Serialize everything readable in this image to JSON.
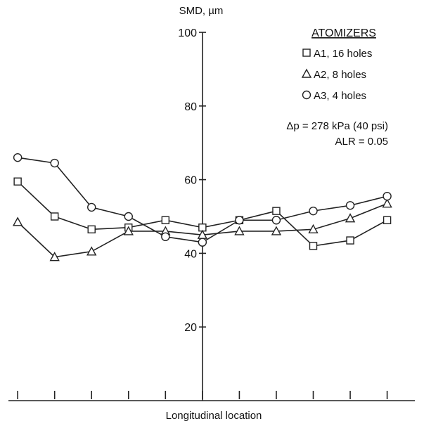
{
  "chart_data": {
    "type": "line",
    "ylabel": "SMD, µm",
    "xlabel": "Longitudinal location",
    "ylim": [
      0,
      100
    ],
    "yticks": [
      20,
      40,
      60,
      80,
      100
    ],
    "x": [
      1,
      2,
      3,
      4,
      5,
      6,
      7,
      8,
      9,
      10,
      11
    ],
    "xlim": [
      0.75,
      11.75
    ],
    "grid": false,
    "legend": {
      "title": "ATOMIZERS",
      "position": "top-right",
      "conditions": [
        "Δp = 278 kPa (40 psi)",
        "ALR = 0.05"
      ]
    },
    "series": [
      {
        "name": "A1, 16 holes",
        "marker": "square",
        "values": [
          59.5,
          50,
          46.5,
          47,
          49,
          47,
          49,
          51.5,
          42,
          43.5,
          49
        ]
      },
      {
        "name": "A2, 8 holes",
        "marker": "triangle",
        "values": [
          48.5,
          39,
          40.5,
          46,
          46,
          45,
          46,
          46,
          46.5,
          49.5,
          53.5
        ]
      },
      {
        "name": "A3, 4 holes",
        "marker": "circle",
        "values": [
          66,
          64.5,
          52.5,
          50,
          44.5,
          43,
          49,
          49,
          51.5,
          53,
          55.5
        ]
      }
    ],
    "colors": {
      "line": "#222222",
      "marker_fill": "#ffffff"
    }
  }
}
